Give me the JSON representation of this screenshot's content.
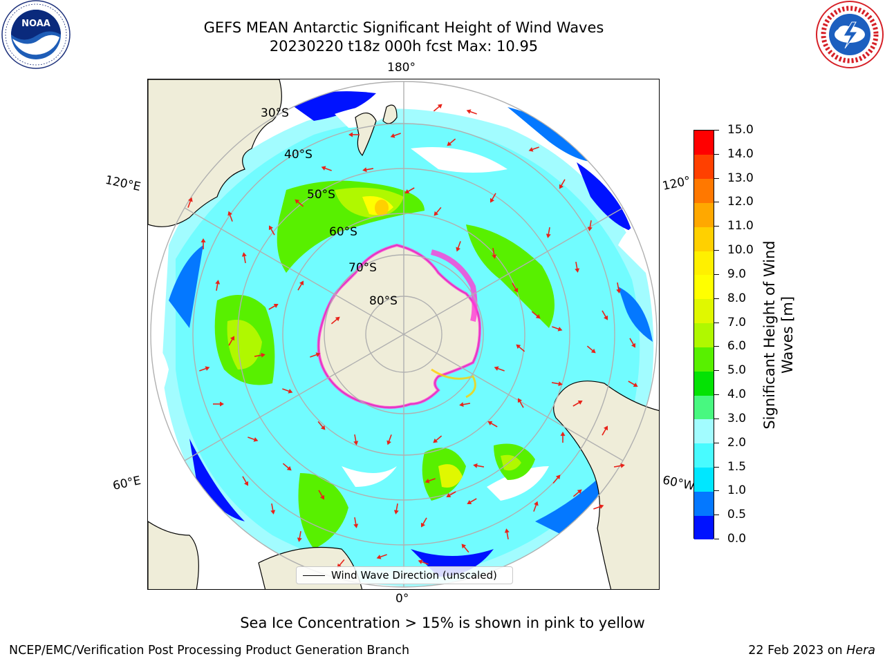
{
  "title": {
    "line1": "GEFS MEAN Antarctic Significant Height of Wind Waves",
    "line2": "20230220 t18z 000h fcst   Max: 10.95"
  },
  "logos": {
    "left": "noaa-logo",
    "right": "nws-logo"
  },
  "map": {
    "projection": "south-polar-stereographic",
    "lon_labels": {
      "top": "180°",
      "bottom": "0°",
      "left_upper": "120°E",
      "left_lower": "60°E",
      "right_upper": "120°",
      "right_lower": "60°W"
    },
    "lat_labels": [
      "30°S",
      "40°S",
      "50°S",
      "60°S",
      "70°S",
      "80°S"
    ],
    "land_color": "#efedd9",
    "arrow_color": "#e8231a",
    "sea_ice_color": "#ff3ad6",
    "legend_label": "Wind Wave Direction (unscaled)"
  },
  "colorbar": {
    "title_line1": "Significant Height of Wind",
    "title_line2": "Waves [m]",
    "levels": [
      "0.0",
      "0.5",
      "1.0",
      "1.5",
      "2.0",
      "3.0",
      "4.0",
      "5.0",
      "6.0",
      "7.0",
      "8.0",
      "9.0",
      "10.0",
      "11.0",
      "12.0",
      "13.0",
      "14.0",
      "15.0"
    ],
    "colors": [
      "#0012ff",
      "#0478ff",
      "#00e7ff",
      "#48fbff",
      "#a2fcff",
      "#48f880",
      "#04e204",
      "#58f000",
      "#b0f800",
      "#e0f800",
      "#ffff00",
      "#fff000",
      "#ffd000",
      "#ffa800",
      "#ff7800",
      "#ff4000",
      "#ff0000"
    ]
  },
  "note": "Sea Ice Concentration > 15% is shown in pink to yellow",
  "footer": {
    "left": "NCEP/EMC/Verification Post Processing Product Generation Branch",
    "date": "22 Feb 2023 on ",
    "machine": "Hera"
  }
}
